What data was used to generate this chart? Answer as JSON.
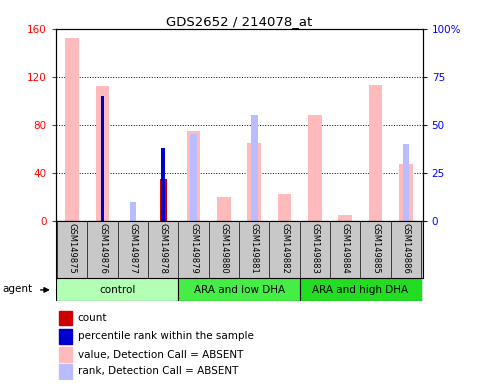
{
  "title": "GDS2652 / 214078_at",
  "samples": [
    "GSM149875",
    "GSM149876",
    "GSM149877",
    "GSM149878",
    "GSM149879",
    "GSM149880",
    "GSM149881",
    "GSM149882",
    "GSM149883",
    "GSM149884",
    "GSM149885",
    "GSM149886"
  ],
  "groups": [
    {
      "label": "control",
      "color": "#b3ffb3",
      "start": 0,
      "end": 4
    },
    {
      "label": "ARA and low DHA",
      "color": "#44ee44",
      "start": 4,
      "end": 8
    },
    {
      "label": "ARA and high DHA",
      "color": "#22dd22",
      "start": 8,
      "end": 12
    }
  ],
  "value_absent": [
    152,
    112,
    0,
    0,
    75,
    20,
    65,
    22,
    88,
    5,
    113,
    47
  ],
  "rank_absent_pct": [
    0,
    0,
    10,
    0,
    45,
    0,
    55,
    0,
    0,
    0,
    0,
    40
  ],
  "count_val": [
    0,
    0,
    0,
    35,
    0,
    0,
    0,
    0,
    0,
    0,
    0,
    0
  ],
  "pct_rank_pct": [
    0,
    65,
    0,
    38,
    0,
    0,
    0,
    0,
    0,
    0,
    0,
    0
  ],
  "ylim_left": [
    0,
    160
  ],
  "ylim_right": [
    0,
    100
  ],
  "yticks_left": [
    0,
    40,
    80,
    120,
    160
  ],
  "yticks_right": [
    0,
    25,
    50,
    75,
    100
  ],
  "ytick_labels_right": [
    "0",
    "25",
    "50",
    "75",
    "100%"
  ],
  "ytick_labels_left": [
    "0",
    "40",
    "80",
    "120",
    "160"
  ],
  "color_value_absent": "#ffbbbb",
  "color_rank_absent": "#bbbbff",
  "color_count": "#cc0000",
  "color_pct_rank": "#0000cc",
  "bg_sample_area": "#c8c8c8",
  "legend_labels": [
    "count",
    "percentile rank within the sample",
    "value, Detection Call = ABSENT",
    "rank, Detection Call = ABSENT"
  ],
  "legend_colors": [
    "#cc0000",
    "#0000cc",
    "#ffbbbb",
    "#bbbbff"
  ]
}
